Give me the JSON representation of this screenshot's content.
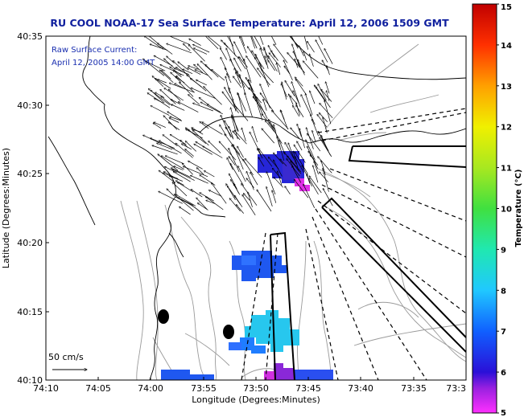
{
  "title": "RU COOL  NOAA-17  Sea Surface Temperature:  April 12, 2006 1509 GMT",
  "annotation": {
    "line1": "Raw Surface Current:",
    "line2": "April 12, 2005 14:00 GMT"
  },
  "scale_label": "50 cm/s",
  "axes": {
    "xlabel": "Longitude (Degrees:Minutes)",
    "ylabel": "Latitude (Degrees:Minutes)",
    "x_ticks": [
      "74:10",
      "74:05",
      "74:00",
      "73:55",
      "73:50",
      "73:45",
      "73:40",
      "73:35",
      "73:3"
    ],
    "y_ticks": [
      "40:35",
      "40:30",
      "40:25",
      "40:20",
      "40:15",
      "40:10"
    ]
  },
  "colorbar": {
    "label": "Temperature (°C)",
    "min": 5,
    "max": 15,
    "ticks": [
      "5",
      "6",
      "7",
      "8",
      "9",
      "10",
      "11",
      "12",
      "13",
      "14",
      "15"
    ]
  },
  "colors": {
    "title": "#0f1f9e",
    "annotation": "#1a2fb0"
  }
}
